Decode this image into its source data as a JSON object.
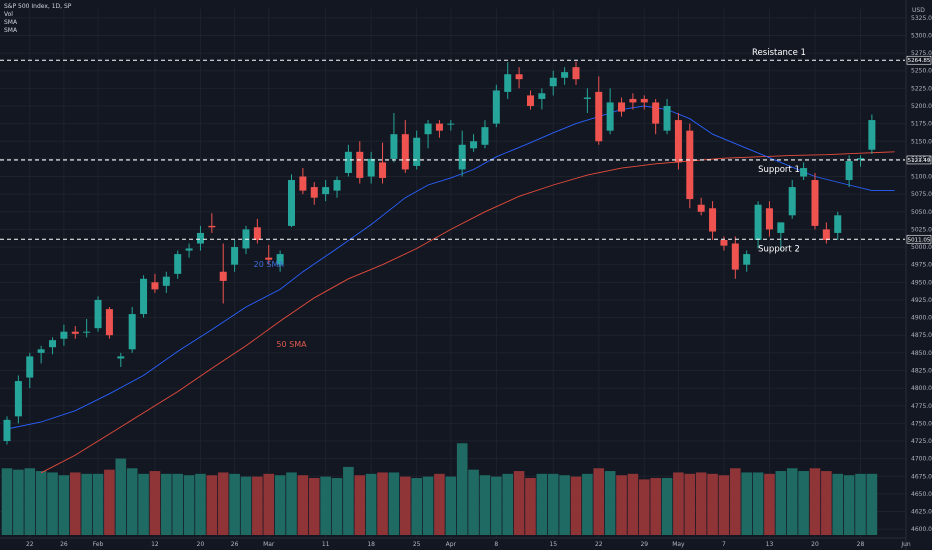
{
  "header": {
    "symbol_line": "S&P 500 Index, 1D, SP",
    "indicators": [
      "Vol",
      "SMA",
      "SMA"
    ]
  },
  "currency": "USD",
  "colors": {
    "background": "#131722",
    "up": "#26a69a",
    "down": "#ef5350",
    "vol_up": "#1f6b64",
    "vol_down": "#8f3538",
    "sma20": "#2962ff",
    "sma50": "#e74c3c",
    "grid": "#1e222d",
    "level_line": "#ffffff"
  },
  "chart_data": {
    "type": "candlestick",
    "ylim": [
      4587.5,
      5337.5
    ],
    "y_ticks": [
      4600,
      4625,
      4650,
      4675,
      4700,
      4725,
      4750,
      4775,
      4800,
      4825,
      4850,
      4875,
      4900,
      4925,
      4950,
      4975,
      5000,
      5025,
      5050,
      5075,
      5100,
      5125,
      5150,
      5175,
      5200,
      5225,
      5250,
      5275,
      5300,
      5325
    ],
    "x_ticks": [
      "22",
      "26",
      "Feb",
      "12",
      "20",
      "26",
      "Mar",
      "11",
      "18",
      "25",
      "Apr",
      "8",
      "15",
      "22",
      "29",
      "May",
      "7",
      "13",
      "20",
      "28",
      "Jun"
    ],
    "x_tick_bars": [
      2,
      5,
      8,
      13,
      17,
      20,
      23,
      28,
      32,
      36,
      39,
      43,
      48,
      52,
      56,
      59,
      63,
      67,
      71,
      75,
      79
    ],
    "levels": [
      {
        "name": "Resistance 1",
        "value": 5264.85,
        "tag": "5264.85"
      },
      {
        "name": "Support 1",
        "value": 5123.49,
        "tag": "5123.49"
      },
      {
        "name": "Support 2",
        "value": 5011.05,
        "tag": "5011.05"
      }
    ],
    "annotations": [
      {
        "text": "20 SMA",
        "series": "sma20"
      },
      {
        "text": "50 SMA",
        "series": "sma50"
      }
    ],
    "candles": [
      [
        4725,
        4760,
        4720,
        4755,
        0.48
      ],
      [
        4760,
        4818,
        4750,
        4810,
        0.47
      ],
      [
        4815,
        4850,
        4800,
        4845,
        0.48
      ],
      [
        4850,
        4860,
        4835,
        4855,
        0.46
      ],
      [
        4858,
        4872,
        4848,
        4868,
        0.45
      ],
      [
        4870,
        4890,
        4860,
        4880,
        0.43
      ],
      [
        4880,
        4888,
        4870,
        4877,
        0.45
      ],
      [
        4880,
        4898,
        4872,
        4880,
        0.44
      ],
      [
        4885,
        4930,
        4880,
        4925,
        0.44
      ],
      [
        4912,
        4915,
        4870,
        4875,
        0.47
      ],
      [
        4842,
        4850,
        4830,
        4845,
        0.55
      ],
      [
        4855,
        4915,
        4850,
        4905,
        0.48
      ],
      [
        4905,
        4960,
        4900,
        4955,
        0.44
      ],
      [
        4950,
        4962,
        4935,
        4940,
        0.46
      ],
      [
        4945,
        4965,
        4935,
        4958,
        0.44
      ],
      [
        4962,
        4995,
        4955,
        4990,
        0.44
      ],
      [
        4995,
        5005,
        4985,
        4998,
        0.43
      ],
      [
        5005,
        5030,
        4995,
        5020,
        0.44
      ],
      [
        5030,
        5048,
        5020,
        5028,
        0.43
      ],
      [
        4965,
        5005,
        4920,
        4952,
        0.45
      ],
      [
        4975,
        5010,
        4965,
        5000,
        0.44
      ],
      [
        4998,
        5030,
        4990,
        5025,
        0.42
      ],
      [
        5028,
        5040,
        5005,
        5010,
        0.42
      ],
      [
        4985,
        5003,
        4975,
        4982,
        0.44
      ],
      [
        4975,
        4995,
        4965,
        4990,
        0.43
      ],
      [
        5030,
        5103,
        5028,
        5095,
        0.45
      ],
      [
        5100,
        5112,
        5075,
        5080,
        0.43
      ],
      [
        5085,
        5092,
        5060,
        5070,
        0.41
      ],
      [
        5075,
        5095,
        5065,
        5085,
        0.42
      ],
      [
        5080,
        5100,
        5070,
        5095,
        0.41
      ],
      [
        5105,
        5145,
        5100,
        5135,
        0.49
      ],
      [
        5135,
        5150,
        5090,
        5098,
        0.43
      ],
      [
        5100,
        5135,
        5090,
        5125,
        0.44
      ],
      [
        5120,
        5148,
        5090,
        5098,
        0.45
      ],
      [
        5125,
        5190,
        5120,
        5160,
        0.45
      ],
      [
        5160,
        5180,
        5105,
        5110,
        0.42
      ],
      [
        5115,
        5165,
        5110,
        5155,
        0.41
      ],
      [
        5160,
        5180,
        5140,
        5175,
        0.42
      ],
      [
        5175,
        5180,
        5155,
        5165,
        0.44
      ],
      [
        5175,
        5180,
        5165,
        5175,
        0.42
      ],
      [
        5110,
        5165,
        5100,
        5145,
        0.66
      ],
      [
        5140,
        5160,
        5135,
        5150,
        0.47
      ],
      [
        5145,
        5180,
        5140,
        5170,
        0.43
      ],
      [
        5175,
        5230,
        5170,
        5222,
        0.42
      ],
      [
        5220,
        5262,
        5210,
        5245,
        0.44
      ],
      [
        5245,
        5255,
        5225,
        5238,
        0.46
      ],
      [
        5215,
        5222,
        5195,
        5200,
        0.41
      ],
      [
        5210,
        5225,
        5195,
        5218,
        0.44
      ],
      [
        5228,
        5250,
        5215,
        5240,
        0.44
      ],
      [
        5240,
        5255,
        5230,
        5248,
        0.43
      ],
      [
        5255,
        5263,
        5230,
        5238,
        0.42
      ],
      [
        5210,
        5225,
        5190,
        5212,
        0.44
      ],
      [
        5220,
        5242,
        5145,
        5150,
        0.48
      ],
      [
        5165,
        5225,
        5160,
        5205,
        0.46
      ],
      [
        5205,
        5212,
        5185,
        5192,
        0.43
      ],
      [
        5210,
        5218,
        5195,
        5205,
        0.44
      ],
      [
        5210,
        5215,
        5195,
        5205,
        0.4
      ],
      [
        5205,
        5210,
        5160,
        5175,
        0.41
      ],
      [
        5165,
        5210,
        5160,
        5200,
        0.41
      ],
      [
        5180,
        5190,
        5110,
        5120,
        0.45
      ],
      [
        5165,
        5175,
        5055,
        5068,
        0.44
      ],
      [
        5060,
        5070,
        5045,
        5050,
        0.45
      ],
      [
        5055,
        5065,
        5010,
        5022,
        0.44
      ],
      [
        5010,
        5015,
        4995,
        5002,
        0.43
      ],
      [
        5005,
        5015,
        4955,
        4968,
        0.48
      ],
      [
        4975,
        4995,
        4965,
        4990,
        0.45
      ],
      [
        5010,
        5065,
        4998,
        5060,
        0.45
      ],
      [
        5055,
        5065,
        5015,
        5025,
        0.44
      ],
      [
        5020,
        5035,
        4995,
        5035,
        0.46
      ],
      [
        5045,
        5095,
        5040,
        5085,
        0.48
      ],
      [
        5100,
        5120,
        5095,
        5112,
        0.46
      ],
      [
        5095,
        5105,
        5025,
        5030,
        0.48
      ],
      [
        5025,
        5035,
        5005,
        5010,
        0.46
      ],
      [
        5020,
        5050,
        5010,
        5045,
        0.44
      ],
      [
        5095,
        5130,
        5085,
        5122,
        0.43
      ],
      [
        5124,
        5130,
        5114,
        5126,
        0.44
      ],
      [
        5138,
        5188,
        5132,
        5180,
        0.44
      ]
    ],
    "sma20": [
      [
        0,
        4742
      ],
      [
        3,
        4752
      ],
      [
        6,
        4768
      ],
      [
        9,
        4792
      ],
      [
        12,
        4818
      ],
      [
        15,
        4852
      ],
      [
        18,
        4883
      ],
      [
        21,
        4915
      ],
      [
        24,
        4940
      ],
      [
        26,
        4965
      ],
      [
        29,
        4998
      ],
      [
        32,
        5032
      ],
      [
        35,
        5070
      ],
      [
        37,
        5088
      ],
      [
        39,
        5098
      ],
      [
        41,
        5110
      ],
      [
        43,
        5128
      ],
      [
        46,
        5148
      ],
      [
        48,
        5162
      ],
      [
        50,
        5175
      ],
      [
        52,
        5185
      ],
      [
        54,
        5195
      ],
      [
        56,
        5200
      ],
      [
        58,
        5195
      ],
      [
        60,
        5182
      ],
      [
        62,
        5160
      ],
      [
        65,
        5140
      ],
      [
        68,
        5120
      ],
      [
        71,
        5100
      ],
      [
        74,
        5088
      ],
      [
        76,
        5080
      ],
      [
        78,
        5080
      ]
    ],
    "sma50": [
      [
        3,
        4680
      ],
      [
        6,
        4705
      ],
      [
        9,
        4735
      ],
      [
        12,
        4765
      ],
      [
        15,
        4795
      ],
      [
        18,
        4828
      ],
      [
        21,
        4860
      ],
      [
        24,
        4895
      ],
      [
        27,
        4928
      ],
      [
        30,
        4955
      ],
      [
        33,
        4975
      ],
      [
        36,
        4998
      ],
      [
        39,
        5025
      ],
      [
        42,
        5050
      ],
      [
        45,
        5072
      ],
      [
        48,
        5088
      ],
      [
        51,
        5102
      ],
      [
        54,
        5112
      ],
      [
        57,
        5118
      ],
      [
        60,
        5122
      ],
      [
        63,
        5126
      ],
      [
        66,
        5128
      ],
      [
        69,
        5130
      ],
      [
        72,
        5131
      ],
      [
        75,
        5133
      ],
      [
        78,
        5135
      ]
    ]
  }
}
